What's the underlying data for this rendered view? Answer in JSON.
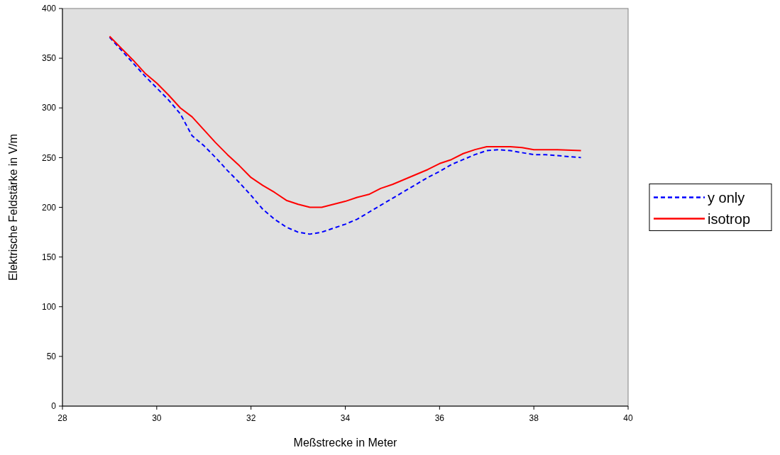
{
  "chart_data": {
    "type": "line",
    "xlabel": "Meßstrecke in Meter",
    "ylabel": "Elektrische Feldstärke in V/m",
    "xlim": [
      28,
      40
    ],
    "xticks": [
      28,
      30,
      32,
      34,
      36,
      38,
      40
    ],
    "ylim": [
      0,
      400
    ],
    "yticks": [
      0,
      50,
      100,
      150,
      200,
      250,
      300,
      350,
      400
    ],
    "grid": false,
    "legend": "right",
    "series": [
      {
        "name": "y only",
        "color": "#0000ff",
        "line_style": "dashed",
        "x": [
          29,
          29.25,
          29.5,
          29.75,
          30,
          30.25,
          30.5,
          30.75,
          31,
          31.25,
          31.5,
          31.75,
          32,
          32.25,
          32.5,
          32.75,
          33,
          33.25,
          33.5,
          33.75,
          34,
          34.25,
          34.5,
          34.75,
          35,
          35.25,
          35.5,
          35.75,
          36,
          36.25,
          36.5,
          36.75,
          37,
          37.25,
          37.5,
          37.75,
          38,
          38.25,
          38.5,
          38.75,
          39
        ],
        "values": [
          371,
          358,
          345,
          332,
          320,
          308,
          294,
          272,
          262,
          250,
          237,
          225,
          212,
          198,
          188,
          180,
          175,
          173,
          175,
          179,
          183,
          188,
          195,
          202,
          209,
          216,
          223,
          230,
          236,
          243,
          248,
          253,
          257,
          258,
          257,
          255,
          253,
          253,
          252,
          251,
          250
        ]
      },
      {
        "name": "isotrop",
        "color": "#ff0000",
        "line_style": "solid",
        "x": [
          29,
          29.25,
          29.5,
          29.75,
          30,
          30.25,
          30.5,
          30.75,
          31,
          31.25,
          31.5,
          31.75,
          32,
          32.25,
          32.5,
          32.75,
          33,
          33.25,
          33.5,
          33.75,
          34,
          34.25,
          34.5,
          34.75,
          35,
          35.25,
          35.5,
          35.75,
          36,
          36.25,
          36.5,
          36.75,
          37,
          37.25,
          37.5,
          37.75,
          38,
          38.5,
          39
        ],
        "values": [
          372,
          360,
          348,
          335,
          325,
          313,
          300,
          291,
          278,
          265,
          253,
          242,
          230,
          222,
          215,
          207,
          203,
          200,
          200,
          203,
          206,
          210,
          213,
          219,
          223,
          228,
          233,
          238,
          244,
          248,
          254,
          258,
          261,
          261,
          261,
          260,
          258,
          258,
          257
        ]
      }
    ]
  }
}
